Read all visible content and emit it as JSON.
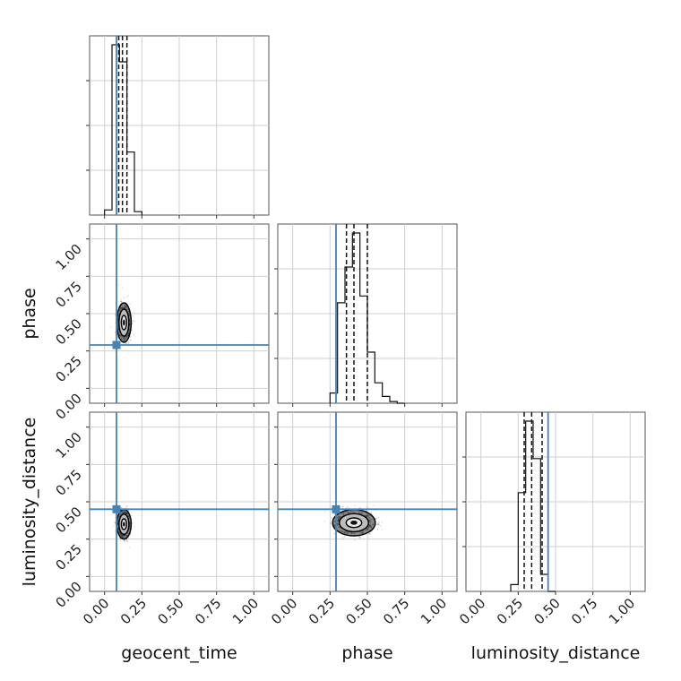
{
  "chart_data": {
    "type": "corner",
    "parameters": [
      "geocent_time",
      "phase",
      "luminosity_distance"
    ],
    "axis_range": [
      -0.1,
      1.1
    ],
    "ticks": [
      0.0,
      0.25,
      0.5,
      0.75,
      1.0
    ],
    "tick_labels": [
      "0.00",
      "0.25",
      "0.50",
      "0.75",
      "1.00"
    ],
    "grid": true,
    "truths": {
      "geocent_time": 0.08,
      "phase": 0.29,
      "luminosity_distance": 0.45
    },
    "truth_color": "#4682b4",
    "quantile_lines": {
      "geocent_time": [
        0.095,
        0.12,
        0.15
      ],
      "phase": [
        0.36,
        0.41,
        0.5
      ],
      "luminosity_distance": [
        0.29,
        0.34,
        0.41
      ]
    },
    "histograms": {
      "geocent_time": {
        "bin_edges": [
          0.0,
          0.05,
          0.1,
          0.15,
          0.2,
          0.25
        ],
        "counts": [
          0.03,
          1.0,
          0.9,
          0.37,
          0.02
        ]
      },
      "phase": {
        "bin_edges": [
          0.25,
          0.3,
          0.35,
          0.4,
          0.45,
          0.5,
          0.55,
          0.6,
          0.65,
          0.7,
          0.75
        ],
        "counts": [
          0.06,
          0.59,
          0.8,
          1.0,
          0.63,
          0.3,
          0.12,
          0.04,
          0.01,
          0.0
        ]
      },
      "luminosity_distance": {
        "bin_edges": [
          0.2,
          0.25,
          0.3,
          0.35,
          0.4,
          0.45,
          0.5
        ],
        "counts": [
          0.04,
          0.58,
          1.0,
          0.78,
          0.1,
          0.0
        ]
      }
    },
    "posterior_2d": [
      {
        "x": "geocent_time",
        "y": "phase",
        "center": [
          0.13,
          0.44
        ],
        "spread": [
          0.022,
          0.06
        ]
      },
      {
        "x": "geocent_time",
        "y": "luminosity_distance",
        "center": [
          0.13,
          0.35
        ],
        "spread": [
          0.022,
          0.045
        ]
      },
      {
        "x": "phase",
        "y": "luminosity_distance",
        "center": [
          0.41,
          0.36
        ],
        "spread": [
          0.065,
          0.04
        ]
      }
    ]
  }
}
